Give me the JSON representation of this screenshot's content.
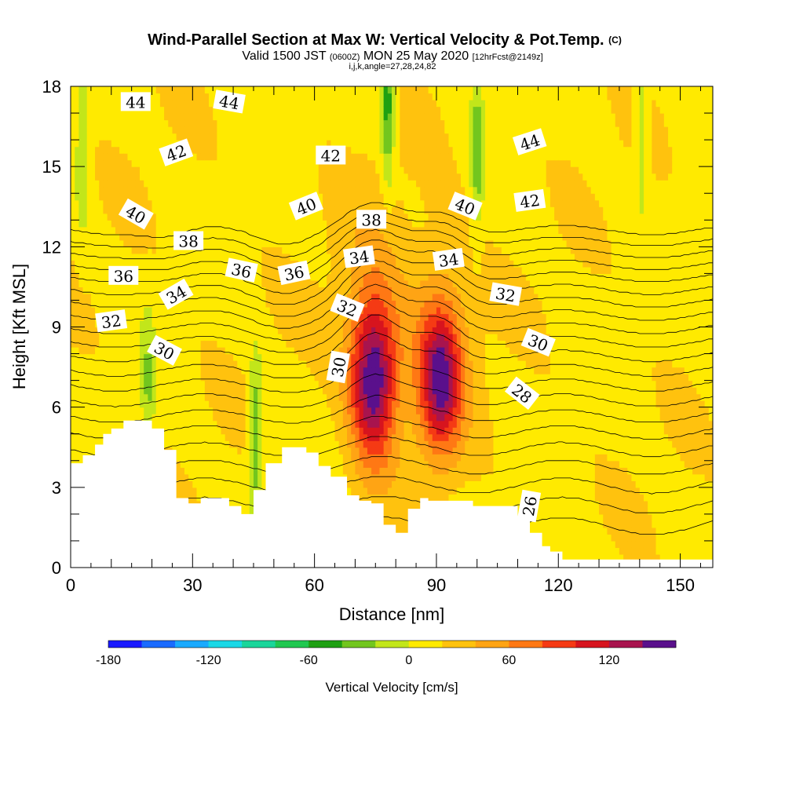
{
  "chart_data": {
    "type": "heatmap",
    "title": "Wind-Parallel Section at Max W: Vertical Velocity & Pot.Temp.",
    "title_mark": "(C)",
    "subtitle_main": "Valid 1500 JST",
    "subtitle_utc": "(0600Z)",
    "subtitle_date": "MON 25 May 2020",
    "subtitle_fcst": "[12hrFcst@2149z]",
    "subtitle_line2": "i,j,k,angle=27,28,24,82",
    "xlabel": "Distance [nm]",
    "ylabel": "Height [Kft MSL]",
    "xlim": [
      0,
      158
    ],
    "ylim": [
      0,
      18
    ],
    "x_ticks": [
      0,
      30,
      60,
      90,
      120,
      150
    ],
    "y_ticks": [
      0,
      3,
      6,
      9,
      12,
      15,
      18
    ],
    "x_tick_labels": [
      "0",
      "30",
      "60",
      "90",
      "120",
      "150"
    ],
    "y_tick_labels": [
      "0",
      "3",
      "6",
      "9",
      "12",
      "15",
      "18"
    ],
    "colorbar": {
      "label": "Vertical Velocity [cm/s]",
      "levels": [
        -180,
        -160,
        -140,
        -120,
        -100,
        -80,
        -60,
        -40,
        -20,
        0,
        20,
        40,
        60,
        80,
        100,
        120,
        140
      ],
      "tick_values": [
        -180,
        -120,
        -60,
        0,
        60,
        120
      ],
      "tick_labels": [
        "-180",
        "-120",
        "-60",
        "0",
        "60",
        "120"
      ],
      "colors": [
        "#1a1aff",
        "#1a6bff",
        "#1aaaff",
        "#1ad8e6",
        "#1ad69a",
        "#20c850",
        "#1ea012",
        "#72c61e",
        "#c2e61a",
        "#ffea00",
        "#ffc20e",
        "#ffa414",
        "#ff7814",
        "#f53a14",
        "#d7141e",
        "#a8144e",
        "#5a108c"
      ]
    },
    "updraft_cores": [
      {
        "x": 74.5,
        "z": 7.0,
        "peak": 130,
        "sx": 5.5,
        "sz": 2.9
      },
      {
        "x": 91.0,
        "z": 7.0,
        "peak": 115,
        "sx": 5.2,
        "sz": 2.7
      }
    ],
    "downdraft_bands": [
      {
        "x": 78.0,
        "z": 17.5,
        "min": -70
      },
      {
        "x": 100.0,
        "z": 15.5,
        "min": -45
      },
      {
        "x": 45.5,
        "z": 5.0,
        "min": -55
      },
      {
        "x": 19.0,
        "z": 6.5,
        "min": -35
      },
      {
        "x": 3.0,
        "z": 15.5,
        "min": -35
      },
      {
        "x": 140.5,
        "z": 16.5,
        "min": -30
      }
    ],
    "theta_contour_labels": [
      {
        "text": "44",
        "x": 16,
        "z": 17.4,
        "angle": 0
      },
      {
        "text": "44",
        "x": 39,
        "z": 17.4,
        "angle": 10
      },
      {
        "text": "42",
        "x": 26,
        "z": 15.5,
        "angle": -20
      },
      {
        "text": "42",
        "x": 64,
        "z": 15.4,
        "angle": 0
      },
      {
        "text": "44",
        "x": 113,
        "z": 15.9,
        "angle": -18
      },
      {
        "text": "40",
        "x": 16,
        "z": 13.2,
        "angle": 30
      },
      {
        "text": "40",
        "x": 58,
        "z": 13.5,
        "angle": -22
      },
      {
        "text": "38",
        "x": 74,
        "z": 13.0,
        "angle": 0
      },
      {
        "text": "40",
        "x": 97,
        "z": 13.5,
        "angle": 22
      },
      {
        "text": "42",
        "x": 113,
        "z": 13.7,
        "angle": -8
      },
      {
        "text": "38",
        "x": 29,
        "z": 12.2,
        "angle": 0
      },
      {
        "text": "36",
        "x": 13,
        "z": 10.9,
        "angle": 0
      },
      {
        "text": "36",
        "x": 42,
        "z": 11.1,
        "angle": 12
      },
      {
        "text": "36",
        "x": 55,
        "z": 11.0,
        "angle": -12
      },
      {
        "text": "34",
        "x": 71,
        "z": 11.6,
        "angle": -8
      },
      {
        "text": "34",
        "x": 93,
        "z": 11.5,
        "angle": -8
      },
      {
        "text": "34",
        "x": 26,
        "z": 10.2,
        "angle": -30
      },
      {
        "text": "32",
        "x": 10,
        "z": 9.2,
        "angle": -8
      },
      {
        "text": "32",
        "x": 68,
        "z": 9.7,
        "angle": 22
      },
      {
        "text": "32",
        "x": 107,
        "z": 10.2,
        "angle": 10
      },
      {
        "text": "30",
        "x": 23,
        "z": 8.1,
        "angle": 28
      },
      {
        "text": "30",
        "x": 66,
        "z": 7.5,
        "angle": -80
      },
      {
        "text": "30",
        "x": 115,
        "z": 8.4,
        "angle": 22
      },
      {
        "text": "28",
        "x": 111,
        "z": 6.5,
        "angle": 38
      },
      {
        "text": "26",
        "x": 113,
        "z": 2.3,
        "angle": -80
      }
    ],
    "terrain_top": [
      [
        0,
        3.9
      ],
      [
        3,
        4.2
      ],
      [
        6,
        4.6
      ],
      [
        8,
        5.0
      ],
      [
        10,
        5.2
      ],
      [
        13,
        5.5
      ],
      [
        20,
        5.2
      ],
      [
        23,
        4.4
      ],
      [
        26,
        2.6
      ],
      [
        29,
        2.4
      ],
      [
        32,
        2.6
      ],
      [
        39,
        2.3
      ],
      [
        42,
        2.0
      ],
      [
        45,
        2.9
      ],
      [
        48,
        3.9
      ],
      [
        52,
        4.5
      ],
      [
        58,
        4.3
      ],
      [
        61,
        3.8
      ],
      [
        64,
        3.4
      ],
      [
        68,
        2.7
      ],
      [
        71,
        2.5
      ],
      [
        74,
        2.4
      ],
      [
        77,
        1.6
      ],
      [
        80,
        1.3
      ],
      [
        83,
        2.2
      ],
      [
        86,
        2.6
      ],
      [
        88,
        2.5
      ],
      [
        90,
        2.5
      ],
      [
        94,
        2.5
      ],
      [
        99,
        2.3
      ],
      [
        107,
        2.3
      ],
      [
        110,
        1.9
      ],
      [
        113,
        1.3
      ],
      [
        116,
        0.8
      ],
      [
        118,
        0.6
      ],
      [
        121,
        0.3
      ],
      [
        158,
        0.3
      ]
    ]
  }
}
